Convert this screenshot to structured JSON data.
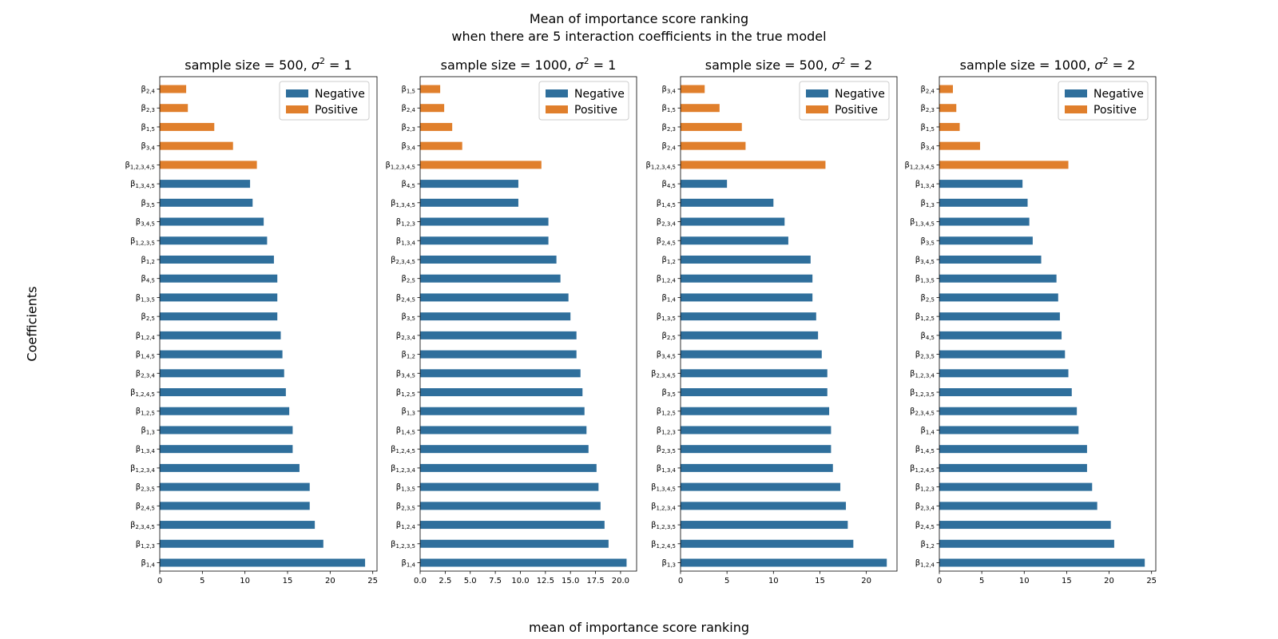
{
  "figure": {
    "title_line1": "Mean of importance score ranking",
    "title_line2": "when there are 5 interaction coefficients in the true model",
    "xlabel": "mean of importance score ranking",
    "ylabel": "Coefficients"
  },
  "colors": {
    "Negative": "#2f6f9c",
    "Positive": "#e07f2c"
  },
  "chart_data": [
    {
      "type": "bar",
      "orientation": "horizontal",
      "title_main": "sample size = 500, ",
      "title_param": "σ² = 1",
      "legend": [
        "Negative",
        "Positive"
      ],
      "legend_position": "top-right",
      "xlim": [
        0,
        25.5
      ],
      "xticks": [
        0,
        5,
        10,
        15,
        20,
        25
      ],
      "xtick_labels": [
        "0",
        "5",
        "10",
        "15",
        "20",
        "25"
      ],
      "categories": [
        "β2,4",
        "β2,3",
        "β1,5",
        "β3,4",
        "β1,2,3,4,5",
        "β1,3,4,5",
        "β3,5",
        "β3,4,5",
        "β1,2,3,5",
        "β1,2",
        "β4,5",
        "β1,3,5",
        "β2,5",
        "β1,2,4",
        "β1,4,5",
        "β2,3,4",
        "β1,2,4,5",
        "β1,2,5",
        "β1,3",
        "β1,3,4",
        "β1,2,3,4",
        "β2,3,5",
        "β2,4,5",
        "β2,3,4,5",
        "β1,2,3",
        "β1,4"
      ],
      "values": [
        3.1,
        3.3,
        6.4,
        8.6,
        11.4,
        10.6,
        10.9,
        12.2,
        12.6,
        13.4,
        13.8,
        13.8,
        13.8,
        14.2,
        14.4,
        14.6,
        14.8,
        15.2,
        15.6,
        15.6,
        16.4,
        17.6,
        17.6,
        18.2,
        19.2,
        24.1
      ],
      "signs": [
        "Positive",
        "Positive",
        "Positive",
        "Positive",
        "Positive",
        "Negative",
        "Negative",
        "Negative",
        "Negative",
        "Negative",
        "Negative",
        "Negative",
        "Negative",
        "Negative",
        "Negative",
        "Negative",
        "Negative",
        "Negative",
        "Negative",
        "Negative",
        "Negative",
        "Negative",
        "Negative",
        "Negative",
        "Negative",
        "Negative"
      ]
    },
    {
      "type": "bar",
      "orientation": "horizontal",
      "title_main": "sample size = 1000, ",
      "title_param": "σ² = 1",
      "legend": [
        "Negative",
        "Positive"
      ],
      "legend_position": "top-right",
      "xlim": [
        0,
        21.6
      ],
      "xticks": [
        0,
        2.5,
        5,
        7.5,
        10,
        12.5,
        15,
        17.5,
        20
      ],
      "xtick_labels": [
        "0.0",
        "2.5",
        "5.0",
        "7.5",
        "10.0",
        "12.5",
        "15.0",
        "17.5",
        "20.0"
      ],
      "categories": [
        "β1,5",
        "β2,4",
        "β2,3",
        "β3,4",
        "β1,2,3,4,5",
        "β4,5",
        "β1,3,4,5",
        "β1,2,3",
        "β1,3,4",
        "β2,3,4,5",
        "β2,5",
        "β2,4,5",
        "β3,5",
        "β2,3,4",
        "β1,2",
        "β3,4,5",
        "β1,2,5",
        "β1,3",
        "β1,4,5",
        "β1,2,4,5",
        "β1,2,3,4",
        "β1,3,5",
        "β2,3,5",
        "β1,2,4",
        "β1,2,3,5",
        "β1,4"
      ],
      "values": [
        2.0,
        2.4,
        3.2,
        4.2,
        12.1,
        9.8,
        9.8,
        12.8,
        12.8,
        13.6,
        14.0,
        14.8,
        15.0,
        15.6,
        15.6,
        16.0,
        16.2,
        16.4,
        16.6,
        16.8,
        17.6,
        17.8,
        18.0,
        18.4,
        18.8,
        20.6
      ],
      "signs": [
        "Positive",
        "Positive",
        "Positive",
        "Positive",
        "Positive",
        "Negative",
        "Negative",
        "Negative",
        "Negative",
        "Negative",
        "Negative",
        "Negative",
        "Negative",
        "Negative",
        "Negative",
        "Negative",
        "Negative",
        "Negative",
        "Negative",
        "Negative",
        "Negative",
        "Negative",
        "Negative",
        "Negative",
        "Negative",
        "Negative"
      ]
    },
    {
      "type": "bar",
      "orientation": "horizontal",
      "title_main": "sample size = 500, ",
      "title_param": "σ² = 2",
      "legend": [
        "Negative",
        "Positive"
      ],
      "legend_position": "top-right",
      "xlim": [
        0,
        23.3
      ],
      "xticks": [
        0,
        5,
        10,
        15,
        20
      ],
      "xtick_labels": [
        "0",
        "5",
        "10",
        "15",
        "20"
      ],
      "categories": [
        "β3,4",
        "β1,5",
        "β2,3",
        "β2,4",
        "β1,2,3,4,5",
        "β4,5",
        "β1,4,5",
        "β2,3,4",
        "β2,4,5",
        "β1,2",
        "β1,2,4",
        "β1,4",
        "β1,3,5",
        "β2,5",
        "β3,4,5",
        "β2,3,4,5",
        "β3,5",
        "β1,2,5",
        "β1,2,3",
        "β2,3,5",
        "β1,3,4",
        "β1,3,4,5",
        "β1,2,3,4",
        "β1,2,3,5",
        "β1,2,4,5",
        "β1,3"
      ],
      "values": [
        2.6,
        4.2,
        6.6,
        7.0,
        15.6,
        5.0,
        10.0,
        11.2,
        11.6,
        14.0,
        14.2,
        14.2,
        14.6,
        14.8,
        15.2,
        15.8,
        15.8,
        16.0,
        16.2,
        16.2,
        16.4,
        17.2,
        17.8,
        18.0,
        18.6,
        22.2
      ],
      "signs": [
        "Positive",
        "Positive",
        "Positive",
        "Positive",
        "Positive",
        "Negative",
        "Negative",
        "Negative",
        "Negative",
        "Negative",
        "Negative",
        "Negative",
        "Negative",
        "Negative",
        "Negative",
        "Negative",
        "Negative",
        "Negative",
        "Negative",
        "Negative",
        "Negative",
        "Negative",
        "Negative",
        "Negative",
        "Negative",
        "Negative"
      ]
    },
    {
      "type": "bar",
      "orientation": "horizontal",
      "title_main": "sample size = 1000, ",
      "title_param": "σ² = 2",
      "legend": [
        "Negative",
        "Positive"
      ],
      "legend_position": "top-right",
      "xlim": [
        0,
        25.5
      ],
      "xticks": [
        0,
        5,
        10,
        15,
        20,
        25
      ],
      "xtick_labels": [
        "0",
        "5",
        "10",
        "15",
        "20",
        "25"
      ],
      "categories": [
        "β2,4",
        "β2,3",
        "β1,5",
        "β3,4",
        "β1,2,3,4,5",
        "β1,3,4",
        "β1,3",
        "β1,3,4,5",
        "β3,5",
        "β3,4,5",
        "β1,3,5",
        "β2,5",
        "β1,2,5",
        "β4,5",
        "β2,3,5",
        "β1,2,3,4",
        "β1,2,3,5",
        "β2,3,4,5",
        "β1,4",
        "β1,4,5",
        "β1,2,4,5",
        "β1,2,3",
        "β2,3,4",
        "β2,4,5",
        "β1,2",
        "β1,2,4"
      ],
      "values": [
        1.6,
        2.0,
        2.4,
        4.8,
        15.2,
        9.8,
        10.4,
        10.6,
        11.0,
        12.0,
        13.8,
        14.0,
        14.2,
        14.4,
        14.8,
        15.2,
        15.6,
        16.2,
        16.4,
        17.4,
        17.4,
        18.0,
        18.6,
        20.2,
        20.6,
        24.2
      ],
      "signs": [
        "Positive",
        "Positive",
        "Positive",
        "Positive",
        "Positive",
        "Negative",
        "Negative",
        "Negative",
        "Negative",
        "Negative",
        "Negative",
        "Negative",
        "Negative",
        "Negative",
        "Negative",
        "Negative",
        "Negative",
        "Negative",
        "Negative",
        "Negative",
        "Negative",
        "Negative",
        "Negative",
        "Negative",
        "Negative",
        "Negative"
      ]
    }
  ]
}
